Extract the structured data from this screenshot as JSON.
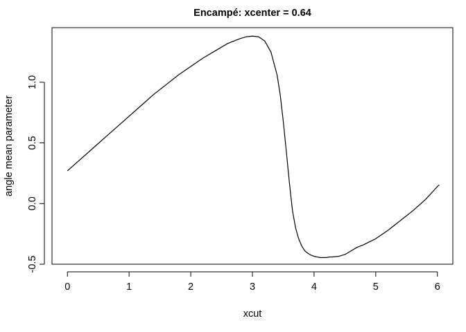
{
  "chart_data": {
    "type": "line",
    "title": "Encampé: xcenter = 0.64",
    "xlabel": "xcut",
    "ylabel": "angle mean parameter",
    "xlim": [
      -0.25,
      6.25
    ],
    "ylim": [
      -0.5,
      1.45
    ],
    "xticks": [
      "0",
      "1",
      "2",
      "3",
      "4",
      "5",
      "6"
    ],
    "yticks": [
      "-0.5",
      "0.0",
      "0.5",
      "1.0"
    ],
    "grid": false,
    "legend": "none",
    "line_color": "#000000",
    "series": [
      {
        "x": [
          0.0,
          0.2,
          0.4,
          0.6,
          0.8,
          1.0,
          1.2,
          1.4,
          1.6,
          1.8,
          2.0,
          2.2,
          2.4,
          2.6,
          2.8,
          2.9,
          3.0,
          3.1,
          3.2,
          3.3,
          3.4,
          3.45,
          3.5,
          3.55,
          3.6,
          3.65,
          3.7,
          3.75,
          3.8,
          3.85,
          3.9,
          3.95,
          4.0,
          4.05,
          4.1,
          4.15,
          4.2,
          4.25,
          4.3,
          4.4,
          4.5,
          4.6,
          4.7,
          4.8,
          5.0,
          5.2,
          5.4,
          5.6,
          5.8,
          6.0,
          6.03
        ],
        "y": [
          0.27,
          0.36,
          0.45,
          0.54,
          0.63,
          0.72,
          0.81,
          0.9,
          0.98,
          1.06,
          1.13,
          1.2,
          1.26,
          1.32,
          1.36,
          1.375,
          1.38,
          1.375,
          1.34,
          1.25,
          1.06,
          0.9,
          0.68,
          0.43,
          0.17,
          -0.06,
          -0.2,
          -0.29,
          -0.35,
          -0.39,
          -0.41,
          -0.425,
          -0.435,
          -0.44,
          -0.445,
          -0.445,
          -0.445,
          -0.44,
          -0.44,
          -0.435,
          -0.42,
          -0.39,
          -0.36,
          -0.34,
          -0.29,
          -0.22,
          -0.14,
          -0.06,
          0.03,
          0.14,
          0.155
        ]
      }
    ]
  }
}
